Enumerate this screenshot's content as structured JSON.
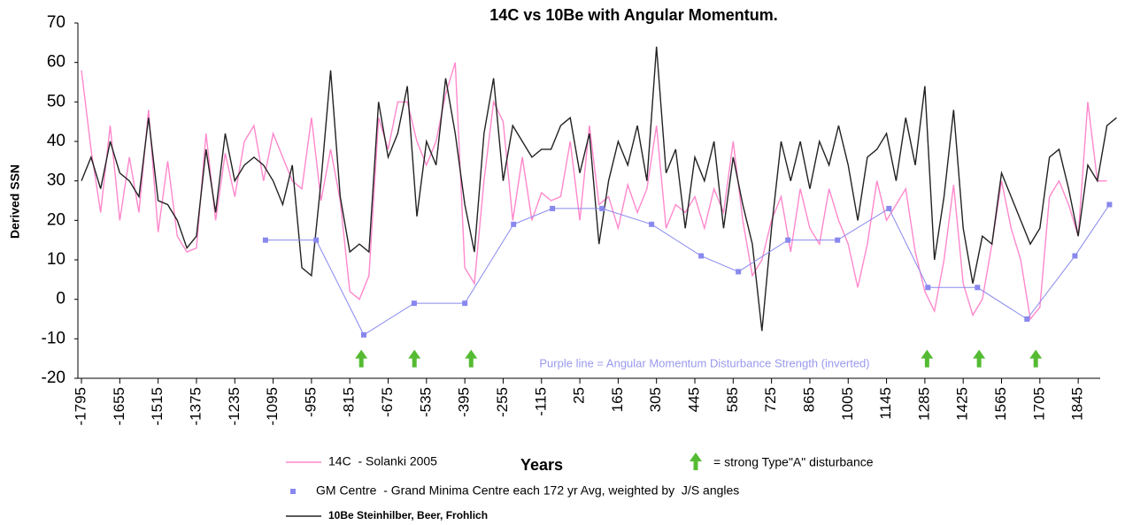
{
  "chart_data": {
    "type": "line",
    "title": "14C vs 10Be with Angular Momentum.",
    "ylabel": "Derived SSN",
    "xlabel": "Years",
    "annotation": "Purple line = Angular Momentum Disturbance Strength (inverted)",
    "arrow_label": "= strong Type\"A\" disturbance",
    "arrow_color": "#55bb33",
    "arrow_x": [
      -773,
      -579,
      -372,
      1293,
      1483,
      1690
    ],
    "arrow_y": -15,
    "xlim": [
      -1808,
      1990
    ],
    "ylim": [
      -20,
      70
    ],
    "yticks": [
      -20,
      -10,
      0,
      10,
      20,
      30,
      40,
      50,
      60,
      70
    ],
    "xticks": [
      -1795,
      -1655,
      -1515,
      -1375,
      -1235,
      -1095,
      -955,
      -815,
      -675,
      -535,
      -395,
      -255,
      -115,
      25,
      165,
      305,
      445,
      585,
      725,
      865,
      1005,
      1145,
      1285,
      1425,
      1565,
      1705,
      1845
    ],
    "x": [
      -1795,
      -1760,
      -1725,
      -1690,
      -1655,
      -1620,
      -1585,
      -1550,
      -1515,
      -1480,
      -1445,
      -1410,
      -1375,
      -1340,
      -1305,
      -1270,
      -1235,
      -1200,
      -1165,
      -1130,
      -1095,
      -1060,
      -1025,
      -990,
      -955,
      -920,
      -885,
      -850,
      -815,
      -780,
      -745,
      -710,
      -675,
      -640,
      -605,
      -570,
      -535,
      -500,
      -465,
      -430,
      -395,
      -360,
      -325,
      -290,
      -255,
      -220,
      -185,
      -150,
      -115,
      -80,
      -45,
      -10,
      25,
      60,
      95,
      130,
      165,
      200,
      235,
      270,
      305,
      340,
      375,
      410,
      445,
      480,
      515,
      550,
      585,
      620,
      655,
      690,
      725,
      760,
      795,
      830,
      865,
      900,
      935,
      970,
      1005,
      1040,
      1075,
      1110,
      1145,
      1180,
      1215,
      1250,
      1285,
      1320,
      1355,
      1390,
      1425,
      1460,
      1495,
      1530,
      1565,
      1600,
      1635,
      1670,
      1705,
      1740,
      1775,
      1810,
      1845,
      1880,
      1915,
      1950,
      1985
    ],
    "series": [
      {
        "name": "14C  - Solanki 2005",
        "color": "#ff88cc",
        "values": [
          58,
          38,
          22,
          44,
          20,
          36,
          22,
          48,
          17,
          35,
          16,
          12,
          13,
          42,
          20,
          37,
          26,
          40,
          44,
          30,
          42,
          36,
          30,
          28,
          46,
          25,
          38,
          25,
          2,
          0,
          6,
          46,
          38,
          50,
          50,
          40,
          34,
          40,
          52,
          60,
          8,
          4,
          30,
          50,
          45,
          20,
          36,
          20,
          27,
          25,
          26,
          40,
          20,
          44,
          24,
          26,
          18,
          29,
          22,
          28,
          44,
          18,
          24,
          22,
          26,
          18,
          28,
          22,
          40,
          20,
          6,
          10,
          20,
          26,
          12,
          28,
          18,
          14,
          28,
          20,
          14,
          3,
          14,
          30,
          20,
          24,
          28,
          12,
          2,
          -3,
          10,
          29,
          4,
          -4,
          0,
          14,
          30,
          18,
          10,
          -5,
          -2,
          26,
          30,
          24,
          16,
          50,
          30,
          30,
          null
        ]
      },
      {
        "name": "10Be Steinhilber, Beer, Frohlich",
        "color": "#222222",
        "values": [
          30,
          36,
          28,
          40,
          32,
          30,
          26,
          46,
          25,
          24,
          20,
          13,
          16,
          38,
          22,
          42,
          30,
          34,
          36,
          34,
          30,
          24,
          34,
          8,
          6,
          30,
          58,
          26,
          12,
          14,
          12,
          50,
          36,
          42,
          54,
          21,
          40,
          34,
          56,
          42,
          24,
          12,
          42,
          56,
          30,
          44,
          40,
          36,
          38,
          38,
          44,
          46,
          32,
          42,
          14,
          30,
          40,
          34,
          44,
          30,
          64,
          32,
          38,
          18,
          36,
          30,
          40,
          18,
          36,
          24,
          14,
          -8,
          18,
          40,
          30,
          40,
          28,
          40,
          34,
          44,
          34,
          20,
          36,
          38,
          42,
          30,
          46,
          34,
          54,
          10,
          26,
          48,
          18,
          4,
          16,
          14,
          32,
          26,
          20,
          14,
          18,
          36,
          38,
          28,
          16,
          34,
          30,
          44,
          46
        ]
      },
      {
        "name": "GM Centre  - Grand Minima Centre each 172 yr Avg, weighted by  J/S angles",
        "color": "#8888ee",
        "marker": "square",
        "x": [
          -1123,
          -938,
          -764,
          -580,
          -395,
          -217,
          -75,
          106,
          287,
          468,
          604,
          785,
          966,
          1154,
          1296,
          1477,
          1658,
          1833,
          1959
        ],
        "values": [
          15,
          15,
          -9,
          -1,
          -1,
          19,
          23,
          23,
          19,
          11,
          7,
          15,
          15,
          23,
          3,
          3,
          -5,
          11,
          24
        ]
      }
    ]
  }
}
